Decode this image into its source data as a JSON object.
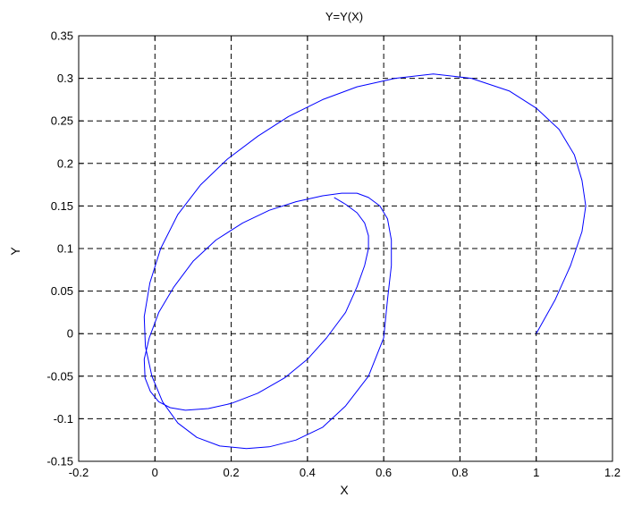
{
  "chart_data": {
    "type": "line",
    "title": "Y=Y(X)",
    "xlabel": "X",
    "ylabel": "Y",
    "xlim": [
      -0.2,
      1.2
    ],
    "ylim": [
      -0.15,
      0.35
    ],
    "xticks": [
      "-0.2",
      "0",
      "0.2",
      "0.4",
      "0.6",
      "0.8",
      "1",
      "1.2"
    ],
    "yticks": [
      "-0.15",
      "-0.1",
      "-0.05",
      "0",
      "0.05",
      "0.1",
      "0.15",
      "0.2",
      "0.25",
      "0.3",
      "0.35"
    ],
    "grid": true,
    "line_color": "#0000ff",
    "series": [
      {
        "x": [
          1.0,
          1.05,
          1.09,
          1.12,
          1.13,
          1.12,
          1.1,
          1.06,
          1.0,
          0.93,
          0.83,
          0.73,
          0.63,
          0.53,
          0.44,
          0.35,
          0.27,
          0.19,
          0.12,
          0.06,
          0.015,
          -0.013,
          -0.028,
          -0.025,
          -0.008,
          0.02,
          0.06,
          0.11,
          0.17,
          0.24,
          0.3,
          0.37,
          0.44,
          0.5,
          0.56,
          0.6,
          0.61,
          0.62,
          0.62,
          0.61,
          0.59,
          0.56,
          0.53,
          0.49,
          0.44,
          0.37,
          0.3,
          0.23,
          0.16,
          0.1,
          0.05,
          0.01,
          -0.015,
          -0.028,
          -0.026,
          -0.012,
          0.01,
          0.04,
          0.08,
          0.14,
          0.2,
          0.27,
          0.34,
          0.4,
          0.45,
          0.5,
          0.53,
          0.55,
          0.56,
          0.56,
          0.55,
          0.53,
          0.5,
          0.47
        ],
        "y": [
          0.0,
          0.04,
          0.08,
          0.12,
          0.15,
          0.18,
          0.21,
          0.24,
          0.265,
          0.285,
          0.3,
          0.305,
          0.3,
          0.29,
          0.275,
          0.255,
          0.232,
          0.205,
          0.175,
          0.14,
          0.1,
          0.06,
          0.02,
          -0.015,
          -0.05,
          -0.08,
          -0.105,
          -0.122,
          -0.132,
          -0.135,
          -0.133,
          -0.125,
          -0.11,
          -0.085,
          -0.05,
          -0.005,
          0.04,
          0.08,
          0.11,
          0.135,
          0.15,
          0.16,
          0.165,
          0.165,
          0.162,
          0.155,
          0.145,
          0.13,
          0.11,
          0.085,
          0.055,
          0.025,
          -0.005,
          -0.03,
          -0.052,
          -0.068,
          -0.08,
          -0.087,
          -0.09,
          -0.088,
          -0.082,
          -0.07,
          -0.052,
          -0.03,
          -0.005,
          0.025,
          0.055,
          0.08,
          0.1,
          0.115,
          0.13,
          0.142,
          0.152,
          0.16
        ]
      }
    ]
  }
}
